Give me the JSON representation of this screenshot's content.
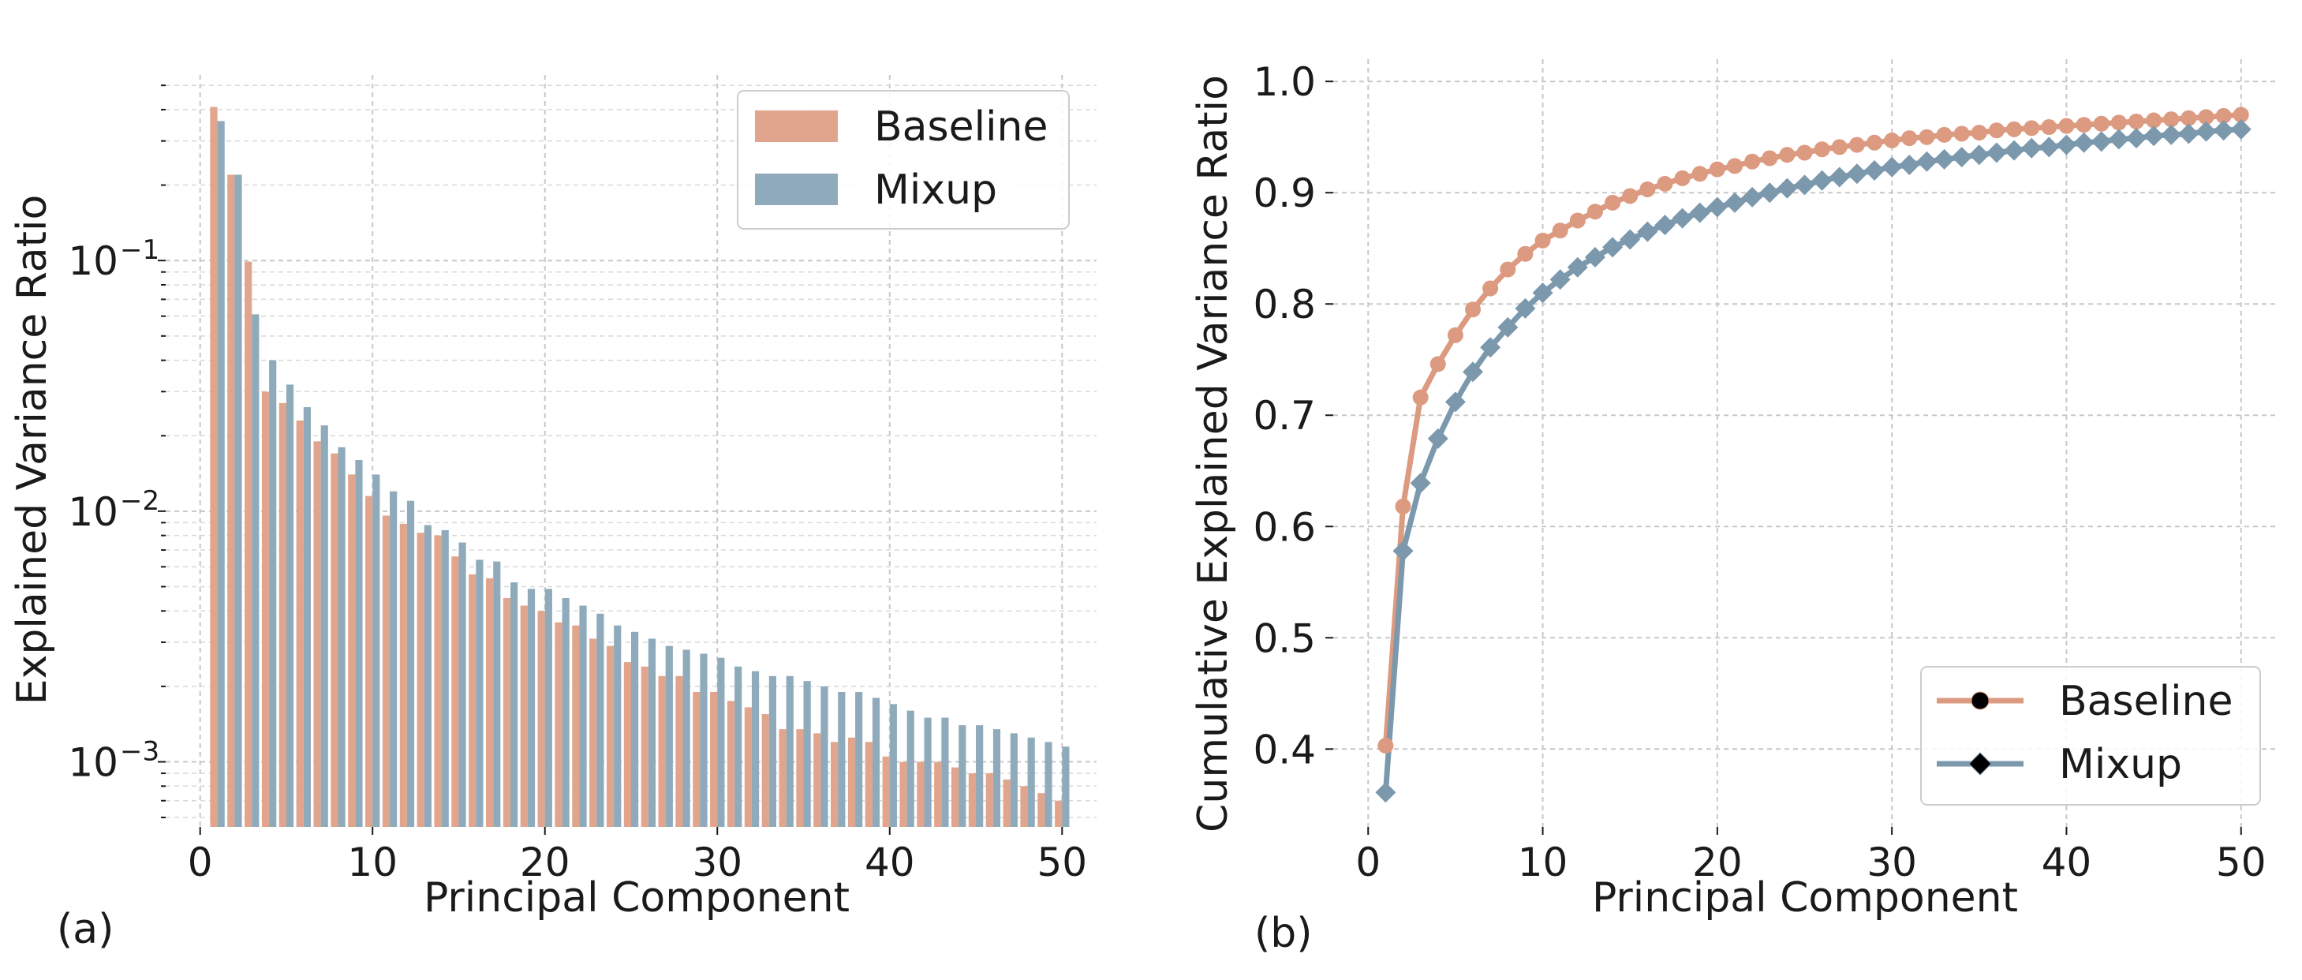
{
  "colors": {
    "baseline": "#e0a58c",
    "mixup": "#8faabb",
    "baseline_line": "#dc9a80",
    "mixup_line": "#7b98ad"
  },
  "panel_labels": [
    "(a)",
    "(b)"
  ],
  "chart_data": [
    {
      "type": "bar",
      "title": "",
      "xlabel": "Principal Component",
      "ylabel": "Explained Variance Ratio",
      "yscale": "log",
      "xlim": [
        -2,
        52
      ],
      "ylim": [
        0.00055,
        0.55
      ],
      "xticks": [
        0,
        10,
        20,
        30,
        40,
        50
      ],
      "xtick_labels": [
        "0",
        "10",
        "20",
        "30",
        "40",
        "50"
      ],
      "yticks": [
        0.1,
        0.01,
        0.001
      ],
      "ytick_labels": [
        {
          "base": "10",
          "exp": "−1"
        },
        {
          "base": "10",
          "exp": "−2"
        },
        {
          "base": "10",
          "exp": "−3"
        }
      ],
      "grid": true,
      "legend_position": "top-right",
      "x": [
        1,
        2,
        3,
        4,
        5,
        6,
        7,
        8,
        9,
        10,
        11,
        12,
        13,
        14,
        15,
        16,
        17,
        18,
        19,
        20,
        21,
        22,
        23,
        24,
        25,
        26,
        27,
        28,
        29,
        30,
        31,
        32,
        33,
        34,
        35,
        36,
        37,
        38,
        39,
        40,
        41,
        42,
        43,
        44,
        45,
        46,
        47,
        48,
        49,
        50
      ],
      "series": [
        {
          "name": "Baseline",
          "values": [
            0.41,
            0.22,
            0.099,
            0.03,
            0.027,
            0.023,
            0.019,
            0.017,
            0.014,
            0.0115,
            0.0096,
            0.0089,
            0.0082,
            0.008,
            0.0066,
            0.0056,
            0.0054,
            0.0045,
            0.0042,
            0.004,
            0.0036,
            0.0035,
            0.0031,
            0.0029,
            0.0025,
            0.0024,
            0.0022,
            0.0022,
            0.0019,
            0.0019,
            0.00175,
            0.00165,
            0.00155,
            0.00135,
            0.00135,
            0.0013,
            0.0012,
            0.00125,
            0.0012,
            0.00105,
            0.001,
            0.001,
            0.001,
            0.00095,
            0.0009,
            0.0009,
            0.00085,
            0.0008,
            0.00075,
            0.0007
          ]
        },
        {
          "name": "Mixup",
          "values": [
            0.36,
            0.22,
            0.061,
            0.04,
            0.032,
            0.026,
            0.022,
            0.018,
            0.016,
            0.014,
            0.012,
            0.011,
            0.0088,
            0.0084,
            0.0075,
            0.0064,
            0.0063,
            0.0052,
            0.0049,
            0.0049,
            0.0045,
            0.0042,
            0.0039,
            0.0035,
            0.0033,
            0.0031,
            0.0029,
            0.0028,
            0.0027,
            0.0026,
            0.0024,
            0.0023,
            0.0022,
            0.0022,
            0.0021,
            0.002,
            0.0019,
            0.0019,
            0.0018,
            0.0017,
            0.0016,
            0.0015,
            0.0015,
            0.0014,
            0.0014,
            0.00135,
            0.0013,
            0.00125,
            0.0012,
            0.00115
          ]
        }
      ]
    },
    {
      "type": "line",
      "title": "",
      "xlabel": "Principal Component",
      "ylabel": "Cumulative Explained Variance Ratio",
      "xlim": [
        -2,
        52
      ],
      "ylim": [
        0.33,
        1.02
      ],
      "xticks": [
        0,
        10,
        20,
        30,
        40,
        50
      ],
      "xtick_labels": [
        "0",
        "10",
        "20",
        "30",
        "40",
        "50"
      ],
      "yticks": [
        0.4,
        0.5,
        0.6,
        0.7,
        0.8,
        0.9,
        1.0
      ],
      "ytick_labels": [
        "0.4",
        "0.5",
        "0.6",
        "0.7",
        "0.8",
        "0.9",
        "1.0"
      ],
      "grid": true,
      "legend_position": "bottom-right",
      "x": [
        1,
        2,
        3,
        4,
        5,
        6,
        7,
        8,
        9,
        10,
        11,
        12,
        13,
        14,
        15,
        16,
        17,
        18,
        19,
        20,
        21,
        22,
        23,
        24,
        25,
        26,
        27,
        28,
        29,
        30,
        31,
        32,
        33,
        34,
        35,
        36,
        37,
        38,
        39,
        40,
        41,
        42,
        43,
        44,
        45,
        46,
        47,
        48,
        49,
        50
      ],
      "series": [
        {
          "name": "Baseline",
          "marker": "circle",
          "values": [
            0.403,
            0.618,
            0.716,
            0.746,
            0.772,
            0.795,
            0.814,
            0.831,
            0.845,
            0.857,
            0.866,
            0.875,
            0.883,
            0.891,
            0.897,
            0.903,
            0.908,
            0.913,
            0.917,
            0.921,
            0.924,
            0.928,
            0.931,
            0.934,
            0.936,
            0.939,
            0.941,
            0.943,
            0.945,
            0.947,
            0.949,
            0.95,
            0.952,
            0.953,
            0.954,
            0.956,
            0.957,
            0.958,
            0.959,
            0.96,
            0.961,
            0.962,
            0.963,
            0.964,
            0.965,
            0.966,
            0.967,
            0.968,
            0.969,
            0.97
          ]
        },
        {
          "name": "Mixup",
          "marker": "diamond",
          "values": [
            0.361,
            0.578,
            0.639,
            0.679,
            0.712,
            0.739,
            0.761,
            0.779,
            0.796,
            0.81,
            0.822,
            0.833,
            0.842,
            0.851,
            0.858,
            0.865,
            0.871,
            0.877,
            0.882,
            0.887,
            0.891,
            0.896,
            0.9,
            0.904,
            0.907,
            0.911,
            0.914,
            0.917,
            0.92,
            0.923,
            0.925,
            0.928,
            0.93,
            0.932,
            0.934,
            0.936,
            0.938,
            0.94,
            0.941,
            0.943,
            0.945,
            0.946,
            0.948,
            0.949,
            0.951,
            0.952,
            0.953,
            0.955,
            0.956,
            0.957
          ]
        }
      ]
    }
  ]
}
